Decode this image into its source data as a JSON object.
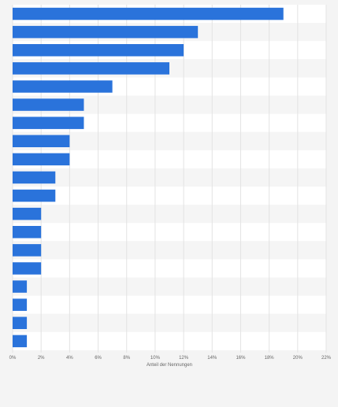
{
  "chart_data": {
    "type": "bar",
    "orientation": "horizontal",
    "title": "",
    "xlabel": "Anteil der Nennungen",
    "ylabel": "",
    "xlim": [
      0,
      22
    ],
    "x_ticks": [
      0,
      2,
      4,
      6,
      8,
      10,
      12,
      14,
      16,
      18,
      20,
      22
    ],
    "x_tick_labels": [
      "0%",
      "2%",
      "4%",
      "6%",
      "8%",
      "10%",
      "12%",
      "14%",
      "16%",
      "18%",
      "20%",
      "22%"
    ],
    "categories": [
      "",
      "",
      "",
      "",
      "",
      "",
      "",
      "",
      "",
      "",
      "",
      "",
      "",
      "",
      "",
      "",
      "",
      "",
      ""
    ],
    "values": [
      19,
      13,
      12,
      11,
      7,
      5,
      5,
      4,
      4,
      3,
      3,
      2,
      2,
      2,
      2,
      1,
      1,
      1,
      1
    ],
    "grid": true,
    "legend": "none",
    "bar_color": "#2a73db",
    "band_colors": [
      "#ffffff",
      "#f5f5f5"
    ],
    "grid_color": "#e3e3e3",
    "tick_label_color": "#666666",
    "background_color": "#f4f4f4"
  }
}
